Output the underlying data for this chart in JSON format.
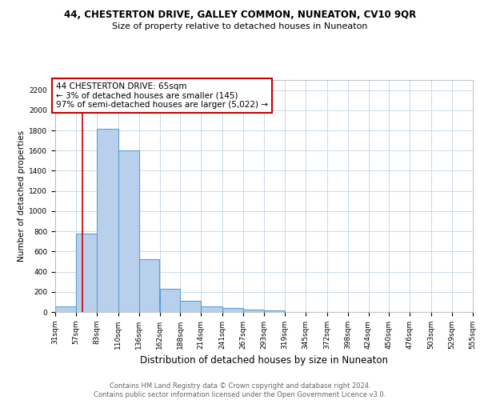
{
  "title": "44, CHESTERTON DRIVE, GALLEY COMMON, NUNEATON, CV10 9QR",
  "subtitle": "Size of property relative to detached houses in Nuneaton",
  "xlabel": "Distribution of detached houses by size in Nuneaton",
  "ylabel": "Number of detached properties",
  "bin_edges": [
    31,
    57,
    83,
    110,
    136,
    162,
    188,
    214,
    241,
    267,
    293,
    319,
    345,
    372,
    398,
    424,
    450,
    476,
    503,
    529,
    555
  ],
  "bar_heights": [
    55,
    780,
    1820,
    1600,
    520,
    230,
    110,
    55,
    40,
    25,
    15,
    0,
    0,
    0,
    0,
    0,
    0,
    0,
    0,
    0
  ],
  "bar_color": "#b8d0eb",
  "bar_edge_color": "#5a9fd4",
  "bar_edge_width": 0.8,
  "red_line_x": 65,
  "red_line_color": "#cc0000",
  "annotation_text": "44 CHESTERTON DRIVE: 65sqm\n← 3% of detached houses are smaller (145)\n97% of semi-detached houses are larger (5,022) →",
  "ylim": [
    0,
    2300
  ],
  "yticks": [
    0,
    200,
    400,
    600,
    800,
    1000,
    1200,
    1400,
    1600,
    1800,
    2000,
    2200
  ],
  "footer_line1": "Contains HM Land Registry data © Crown copyright and database right 2024.",
  "footer_line2": "Contains public sector information licensed under the Open Government Licence v3.0.",
  "bg_color": "#ffffff",
  "grid_color": "#c8d8e8",
  "title_fontsize": 8.5,
  "subtitle_fontsize": 8,
  "xlabel_fontsize": 8.5,
  "ylabel_fontsize": 7.5,
  "tick_fontsize": 6.5,
  "annotation_fontsize": 7.5,
  "footer_fontsize": 6
}
